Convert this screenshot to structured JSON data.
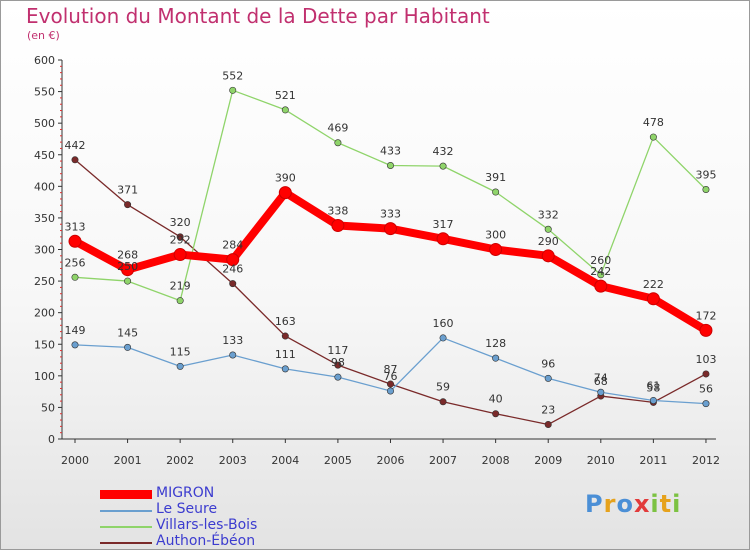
{
  "title": "Evolution du Montant de la Dette par Habitant",
  "unit_label": "(en €)",
  "chart_data": {
    "type": "line",
    "title": "Evolution du Montant de la Dette par Habitant",
    "ylabel": "(en €)",
    "xlabel": "",
    "x": [
      "2000",
      "2001",
      "2002",
      "2003",
      "2004",
      "2005",
      "2006",
      "2007",
      "2008",
      "2009",
      "2010",
      "2011",
      "2012"
    ],
    "ylim": [
      0,
      600
    ],
    "yticks": [
      0,
      50,
      100,
      150,
      200,
      250,
      300,
      350,
      400,
      450,
      500,
      550,
      600
    ],
    "grid": false,
    "legend_position": "bottom-left",
    "series": [
      {
        "name": "MIGRON",
        "color": "#ff0000",
        "values": [
          313,
          268,
          292,
          284,
          390,
          338,
          333,
          317,
          300,
          290,
          242,
          222,
          172
        ]
      },
      {
        "name": "Le Seure",
        "color": "#6a9fcf",
        "values": [
          149,
          145,
          115,
          133,
          111,
          98,
          76,
          160,
          128,
          96,
          74,
          61,
          56
        ]
      },
      {
        "name": "Villars-les-Bois",
        "color": "#8fd46a",
        "values": [
          256,
          250,
          219,
          552,
          521,
          469,
          433,
          432,
          391,
          332,
          260,
          478,
          395
        ]
      },
      {
        "name": "Authon-Ébéon",
        "color": "#7a2a2a",
        "values": [
          442,
          371,
          320,
          246,
          163,
          117,
          87,
          59,
          40,
          23,
          68,
          58,
          103
        ]
      }
    ]
  },
  "logo": {
    "letters": [
      {
        "ch": "P",
        "color": "#4b8fd6"
      },
      {
        "ch": "r",
        "color": "#e6a21c"
      },
      {
        "ch": "o",
        "color": "#4b8fd6"
      },
      {
        "ch": "x",
        "color": "#e23b3b"
      },
      {
        "ch": "i",
        "color": "#7cc242"
      },
      {
        "ch": "t",
        "color": "#e6a21c"
      },
      {
        "ch": "i",
        "color": "#7cc242"
      }
    ]
  }
}
